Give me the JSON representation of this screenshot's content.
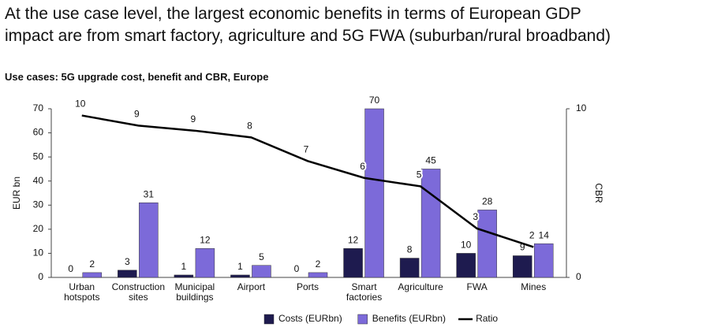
{
  "chart_data": {
    "type": "bar",
    "title": "At the use case level, the largest economic benefits in terms of European GDP\nimpact are from smart factory, agriculture and 5G FWA (suburban/rural broadband)",
    "subtitle": "Use cases: 5G upgrade cost, benefit and CBR, Europe",
    "y_label": "EUR bn",
    "y2_label": "CBR",
    "categories": [
      "Urban hotspots",
      "Construction sites",
      "Municipal buildings",
      "Airport",
      "Ports",
      "Smart factories",
      "Agriculture",
      "FWA",
      "Mines"
    ],
    "series": [
      {
        "name": "Costs (EURbn)",
        "type": "bar",
        "color": "#1e1b4f",
        "values": [
          0,
          3,
          1,
          1,
          0,
          12,
          8,
          10,
          9
        ]
      },
      {
        "name": "Benefits (EURbn)",
        "type": "bar",
        "color": "#7c6ad9",
        "values": [
          2,
          31,
          12,
          5,
          2,
          70,
          45,
          28,
          14
        ]
      },
      {
        "name": "Ratio",
        "type": "line",
        "axis": "y2",
        "color": "#000000",
        "values": [
          9.6,
          9.0,
          8.7,
          8.3,
          6.9,
          5.9,
          5.4,
          2.9,
          1.8
        ],
        "value_labels": [
          "10",
          "9",
          "9",
          "8",
          "7",
          "6",
          "5",
          "3",
          "2"
        ]
      }
    ],
    "ylim": [
      0,
      70
    ],
    "yticks": [
      0,
      10,
      20,
      30,
      40,
      50,
      60,
      70
    ],
    "y2lim": [
      0,
      10
    ],
    "y2ticks": [
      0,
      10
    ],
    "legend": "bottom"
  }
}
